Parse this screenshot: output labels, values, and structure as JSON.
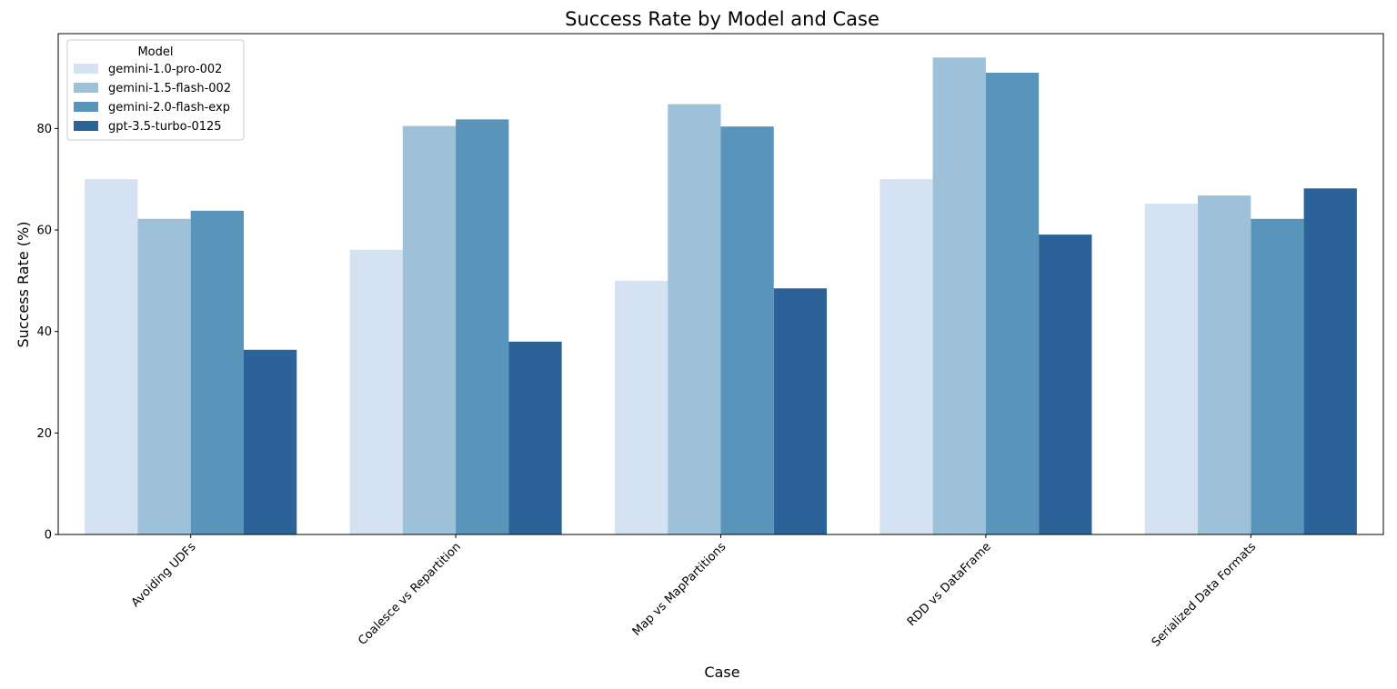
{
  "chart_data": {
    "type": "bar",
    "title": "Success Rate by Model and Case",
    "xlabel": "Case",
    "ylabel": "Success Rate (%)",
    "categories": [
      "Avoiding UDFs",
      "Coalesce vs Repartition",
      "Map vs MapPartitions",
      "RDD vs DataFrame",
      "Serialized Data Formats"
    ],
    "series": [
      {
        "name": "gemini-1.0-pro-002",
        "color": "#d4e2f1",
        "values": [
          70.0,
          56.1,
          50.0,
          70.0,
          65.2
        ]
      },
      {
        "name": "gemini-1.5-flash-002",
        "color": "#9dc1d8",
        "values": [
          62.2,
          80.5,
          84.8,
          94.0,
          66.8
        ]
      },
      {
        "name": "gemini-2.0-flash-exp",
        "color": "#5995bb",
        "values": [
          63.8,
          81.8,
          80.4,
          91.0,
          62.2
        ]
      },
      {
        "name": "gpt-3.5-turbo-0125",
        "color": "#2b6399",
        "values": [
          36.4,
          38.0,
          48.5,
          59.1,
          68.2
        ]
      }
    ],
    "yticks": [
      0,
      20,
      40,
      60,
      80
    ],
    "ylim": [
      0,
      98.7
    ],
    "grid": false,
    "legend": {
      "title": "Model",
      "placement": "top-left"
    }
  }
}
